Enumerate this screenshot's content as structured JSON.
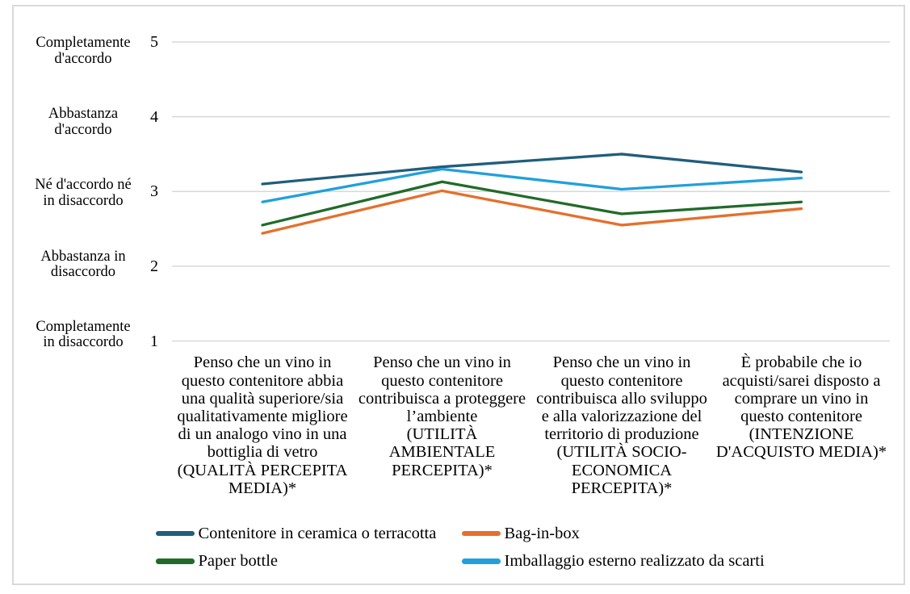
{
  "chart_data": {
    "type": "line",
    "title": "",
    "xlabel": "",
    "ylabel": "",
    "ylim": [
      1,
      5
    ],
    "grid": true,
    "legend_position": "bottom",
    "categories": [
      "Penso che un vino in\nquesto contenitore abbia\nuna qualità superiore/sia\nqualitativamente migliore\ndi un analogo vino in una\nbottiglia di vetro\n(QUALITÀ PERCEPITA\nMEDIA)*",
      "Penso che un vino in\nquesto contenitore\ncontribuisca a proteggere\nl’ambiente\n(UTILITÀ\nAMBIENTALE\nPERCEPITA)*",
      "Penso che un vino in\nquesto contenitore\ncontribuisca allo sviluppo\ne alla valorizzazione del\nterritorio di produzione\n(UTILITÀ SOCIO-\nECONOMICA\nPERCEPITA)*",
      "È probabile che io\nacquisti/sarei disposto a\ncomprare un vino in\nquesto contenitore\n(INTENZIONE\nD'ACQUISTO MEDIA)*"
    ],
    "series": [
      {
        "name": "Contenitore in ceramica o terracotta",
        "color": "#215D7C",
        "values": [
          3.1,
          3.33,
          3.5,
          3.26
        ]
      },
      {
        "name": "Bag-in-box",
        "color": "#E4702C",
        "values": [
          2.44,
          3.01,
          2.55,
          2.77
        ]
      },
      {
        "name": "Paper bottle",
        "color": "#216B29",
        "values": [
          2.55,
          3.13,
          2.7,
          2.86
        ]
      },
      {
        "name": "Imballaggio esterno realizzato da scarti",
        "color": "#22A0DB",
        "values": [
          2.86,
          3.3,
          3.03,
          3.18
        ]
      }
    ],
    "y_axis": {
      "tick_labels": [
        "5",
        "4",
        "3",
        "2",
        "1"
      ],
      "scale_labels": [
        "Completamente\nd'accordo",
        "Abbastanza\nd'accordo",
        "Né d'accordo né\nin disaccordo",
        "Abbastanza in\ndisaccordo",
        "Completamente\nin disaccordo"
      ],
      "gridline_color": "#D9D9D9"
    }
  }
}
